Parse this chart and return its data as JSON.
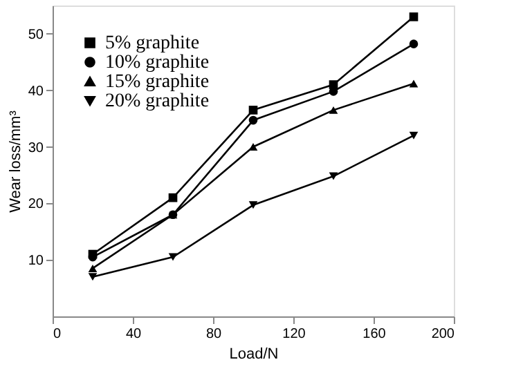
{
  "chart_data": {
    "type": "line",
    "xlabel": "Load/N",
    "ylabel": "Wear loss/mm³",
    "x": [
      20,
      60,
      100,
      140,
      180
    ],
    "series": [
      {
        "name": "5% graphite",
        "color": "#000000",
        "marker": "square",
        "values": [
          11,
          21,
          36.5,
          41,
          53
        ]
      },
      {
        "name": "10% graphite",
        "color": "#000000",
        "marker": "circle",
        "values": [
          10.5,
          18,
          34.7,
          39.8,
          48.2
        ]
      },
      {
        "name": "15% graphite",
        "color": "#000000",
        "marker": "triangle",
        "values": [
          8.5,
          18,
          30,
          36.5,
          41.2
        ]
      },
      {
        "name": "20% graphite",
        "color": "#000000",
        "marker": "triangle-down",
        "values": [
          7,
          10.5,
          19.7,
          24.8,
          32
        ]
      }
    ],
    "xlim": [
      0,
      200
    ],
    "xticks": [
      0,
      40,
      80,
      120,
      160,
      200
    ],
    "ylim": [
      0,
      55
    ],
    "yticks": [
      10,
      20,
      30,
      40,
      50
    ],
    "grid": false,
    "legend": "top left",
    "line_style": "solid"
  }
}
